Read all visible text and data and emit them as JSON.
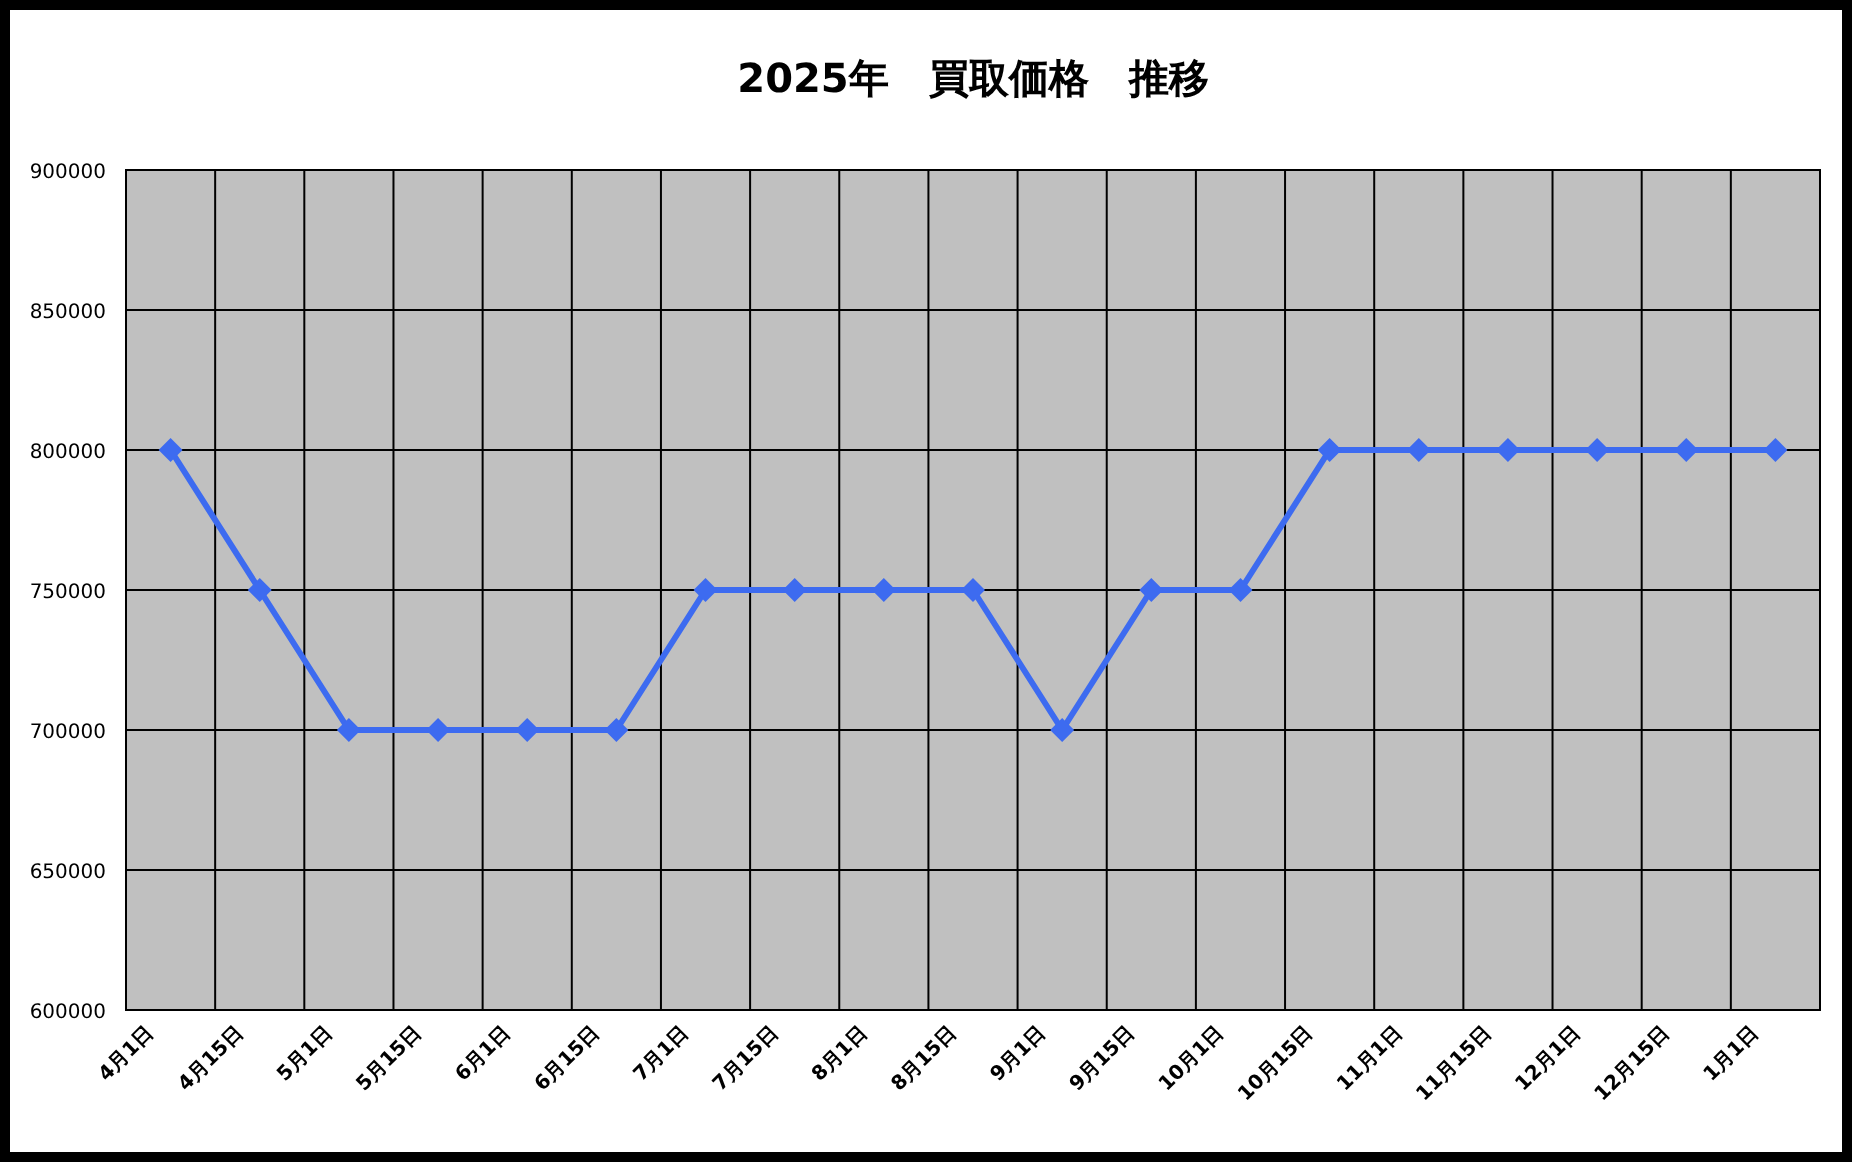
{
  "chart_data": {
    "type": "line",
    "title": "2025年　買取価格　推移",
    "categories": [
      "4月1日",
      "4月15日",
      "5月1日",
      "5月15日",
      "6月1日",
      "6月15日",
      "7月1日",
      "7月15日",
      "8月1日",
      "8月15日",
      "9月1日",
      "9月15日",
      "10月1日",
      "10月15日",
      "11月1日",
      "11月15日",
      "12月1日",
      "12月15日",
      "1月1日"
    ],
    "values": [
      800000,
      750000,
      700000,
      700000,
      700000,
      700000,
      750000,
      750000,
      750000,
      750000,
      700000,
      750000,
      750000,
      800000,
      800000,
      800000,
      800000,
      800000,
      800000
    ],
    "color": "#3d6bf0",
    "ylim": [
      600000,
      900000
    ],
    "yticks": [
      600000,
      650000,
      700000,
      750000,
      800000,
      850000,
      900000
    ],
    "grid": true,
    "marker": "diamond"
  }
}
